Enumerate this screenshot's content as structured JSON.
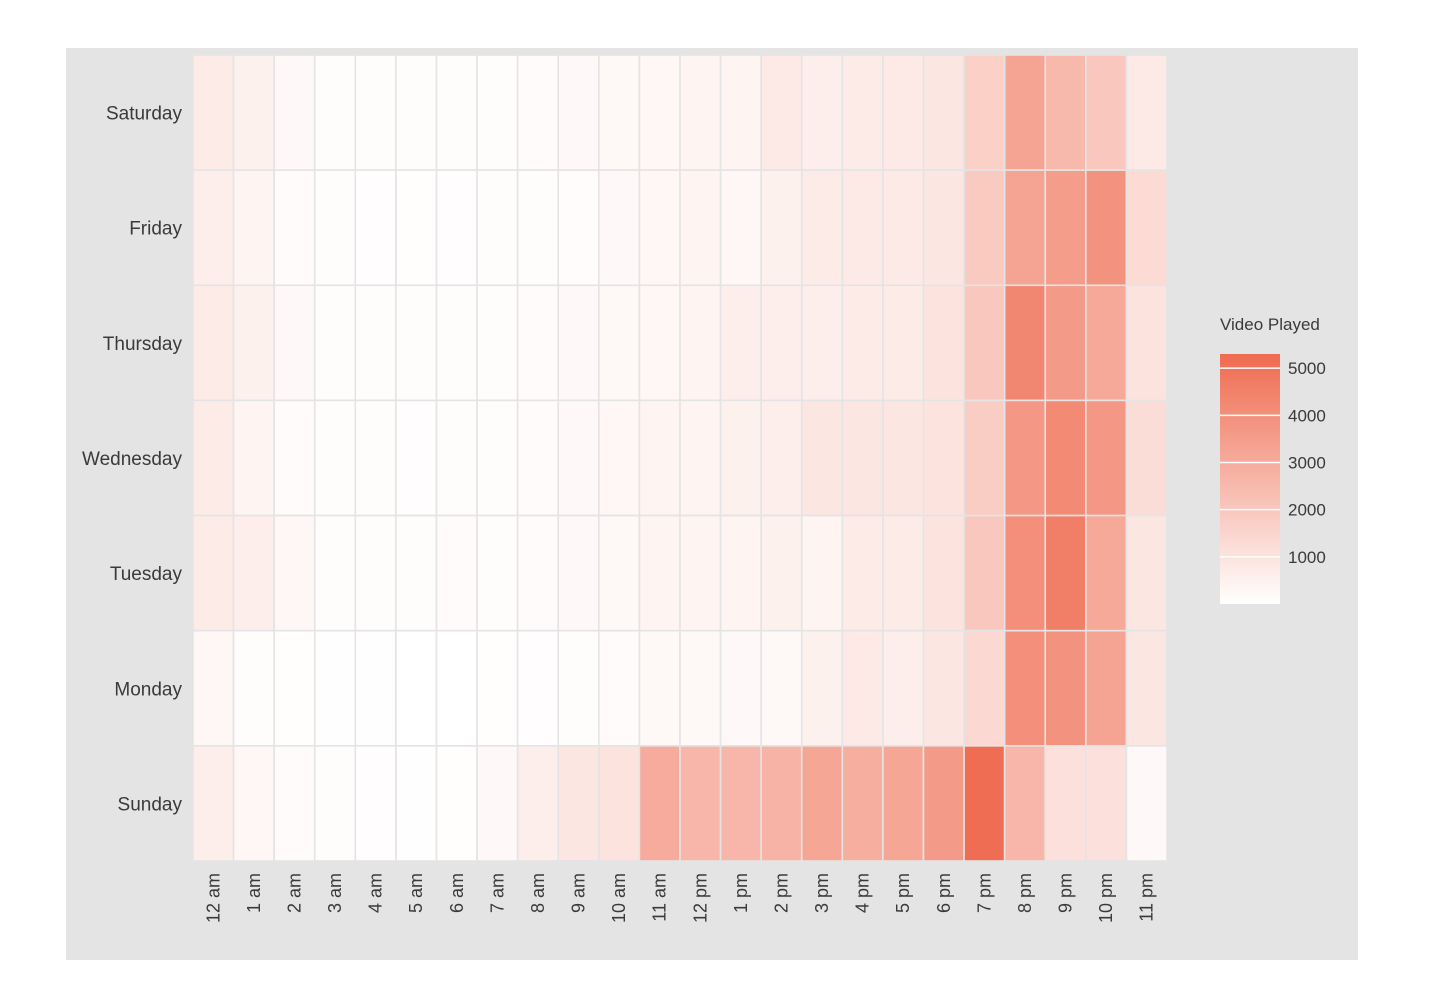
{
  "chart_data": {
    "type": "heatmap",
    "title": "",
    "xlabel": "",
    "ylabel": "",
    "x": [
      "12 am",
      "1 am",
      "2 am",
      "3 am",
      "4 am",
      "5 am",
      "6 am",
      "7 am",
      "8 am",
      "9 am",
      "10 am",
      "11 am",
      "12 pm",
      "1 pm",
      "2 pm",
      "3 pm",
      "4 pm",
      "5 pm",
      "6 pm",
      "7 pm",
      "8 pm",
      "9 pm",
      "10 pm",
      "11 pm"
    ],
    "y": [
      "Saturday",
      "Friday",
      "Thursday",
      "Wednesday",
      "Tuesday",
      "Monday",
      "Sunday"
    ],
    "values": [
      [
        700,
        500,
        200,
        100,
        80,
        80,
        90,
        100,
        150,
        200,
        250,
        300,
        350,
        400,
        800,
        600,
        700,
        800,
        900,
        1700,
        3300,
        2500,
        2000,
        800
      ],
      [
        600,
        350,
        150,
        80,
        60,
        50,
        60,
        80,
        100,
        120,
        200,
        300,
        350,
        300,
        500,
        700,
        800,
        800,
        900,
        1900,
        3300,
        3500,
        3900,
        1300
      ],
      [
        700,
        500,
        200,
        100,
        100,
        80,
        80,
        100,
        150,
        200,
        250,
        300,
        400,
        600,
        600,
        600,
        700,
        700,
        1000,
        2000,
        4300,
        3600,
        3100,
        1000
      ],
      [
        700,
        400,
        150,
        80,
        80,
        60,
        80,
        100,
        150,
        200,
        300,
        350,
        400,
        500,
        600,
        900,
        900,
        900,
        1000,
        1800,
        3700,
        4200,
        3700,
        1200
      ],
      [
        700,
        600,
        300,
        100,
        100,
        100,
        150,
        100,
        150,
        200,
        250,
        400,
        400,
        400,
        500,
        400,
        700,
        700,
        1000,
        2000,
        4000,
        4600,
        3100,
        900
      ],
      [
        300,
        100,
        50,
        40,
        20,
        10,
        10,
        50,
        60,
        80,
        150,
        250,
        250,
        200,
        250,
        500,
        800,
        600,
        900,
        1400,
        4000,
        3900,
        3300,
        900
      ],
      [
        600,
        300,
        150,
        80,
        60,
        40,
        50,
        200,
        600,
        900,
        1000,
        3000,
        2600,
        2600,
        2700,
        3200,
        2900,
        3200,
        3600,
        5200,
        2600,
        1100,
        1100,
        200
      ]
    ],
    "legend": {
      "title": "Video Played",
      "ticks": [
        5000,
        4000,
        3000,
        2000,
        1000
      ],
      "range": [
        0,
        5300
      ],
      "placement": "right"
    },
    "color_low": "#ffffff",
    "color_high": "#ef6b50"
  }
}
